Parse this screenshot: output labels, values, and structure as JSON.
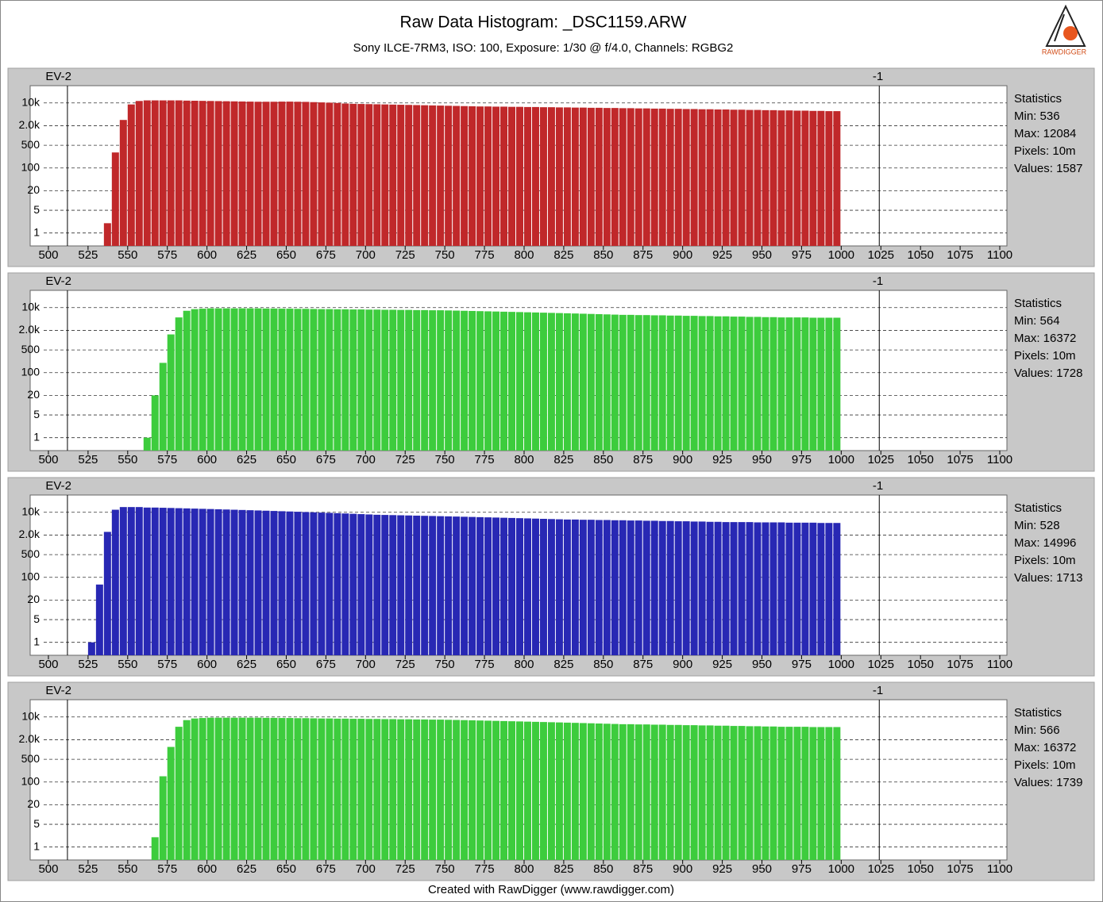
{
  "header": {
    "title": "Raw Data Histogram: _DSC1159.ARW",
    "subtitle": "Sony ILCE-7RM3, ISO: 100, Exposure: 1/30 @ f/4.0, Channels: RGBG2",
    "logo": "RAWDIGGER"
  },
  "footer": "Created with RawDigger (www.rawdigger.com)",
  "chart_data": [
    {
      "type": "histogram",
      "color": "#c0282a",
      "bins": [
        535,
        540,
        545,
        550,
        555,
        560,
        565,
        570,
        575,
        580,
        585,
        590,
        595,
        600,
        605,
        610,
        615,
        620,
        625,
        630,
        635,
        640,
        645,
        650,
        655,
        660,
        665,
        670,
        675,
        680,
        685,
        690,
        695,
        700,
        705,
        710,
        715,
        720,
        725,
        730,
        735,
        740,
        745,
        750,
        755,
        760,
        765,
        770,
        775,
        780,
        785,
        790,
        795,
        800,
        805,
        810,
        815,
        820,
        825,
        830,
        835,
        840,
        845,
        850,
        855,
        860,
        865,
        870,
        875,
        880,
        885,
        890,
        895,
        900,
        905,
        910,
        915,
        920,
        925,
        930,
        935,
        940,
        945,
        950,
        955,
        960,
        965,
        970,
        975,
        980,
        985,
        990,
        995,
        1000
      ],
      "values": [
        2,
        300,
        3000,
        9000,
        11500,
        12000,
        12000,
        12000,
        12000,
        12000,
        11800,
        11700,
        11600,
        11500,
        11400,
        11300,
        11200,
        11100,
        11000,
        10900,
        10900,
        10900,
        11000,
        11000,
        10900,
        10800,
        10600,
        10400,
        10200,
        10000,
        9600,
        9400,
        9300,
        9200,
        9100,
        9000,
        8900,
        8800,
        8700,
        8600,
        8500,
        8400,
        8300,
        8200,
        8100,
        8000,
        7900,
        7800,
        7800,
        7700,
        7700,
        7600,
        7600,
        7500,
        7500,
        7400,
        7400,
        7300,
        7300,
        7200,
        7200,
        7100,
        7100,
        7000,
        7000,
        6900,
        6900,
        6800,
        6800,
        6700,
        6700,
        6600,
        6600,
        6500,
        6500,
        6400,
        6400,
        6300,
        6300,
        6200,
        6200,
        6100,
        6100,
        6000,
        6000,
        5900,
        5900,
        5800,
        5800,
        5700,
        5700,
        5600,
        5600
      ],
      "xlim": [
        488.5,
        1104.5
      ],
      "xticks": [
        500,
        525,
        550,
        575,
        600,
        625,
        650,
        675,
        700,
        725,
        750,
        775,
        800,
        825,
        850,
        875,
        900,
        925,
        950,
        975,
        1000,
        1025,
        1050,
        1075,
        1100
      ],
      "ylim": [
        0.4,
        34000
      ],
      "log_y": true,
      "grid": true,
      "yticks": [
        1,
        5,
        20,
        100,
        500,
        {
          "value": 2000,
          "label": "2.0k"
        },
        {
          "value": 10000,
          "label": "10k"
        }
      ],
      "markers": [
        {
          "value": 512,
          "label": "EV-2"
        },
        {
          "value": 1024,
          "label": "-1"
        }
      ],
      "statistics": {
        "title": "Statistics",
        "lines": [
          "Min: 536",
          "Max: 12084",
          "Pixels: 10m",
          "Values: 1587"
        ]
      }
    },
    {
      "type": "histogram",
      "color": "#3dcc3d",
      "bins": [
        560,
        565,
        570,
        575,
        580,
        585,
        590,
        595,
        600,
        605,
        610,
        615,
        620,
        625,
        630,
        635,
        640,
        645,
        650,
        655,
        660,
        665,
        670,
        675,
        680,
        685,
        690,
        695,
        700,
        705,
        710,
        715,
        720,
        725,
        730,
        735,
        740,
        745,
        750,
        755,
        760,
        765,
        770,
        775,
        780,
        785,
        790,
        795,
        800,
        805,
        810,
        815,
        820,
        825,
        830,
        835,
        840,
        845,
        850,
        855,
        860,
        865,
        870,
        875,
        880,
        885,
        890,
        895,
        900,
        905,
        910,
        915,
        920,
        925,
        930,
        935,
        940,
        945,
        950,
        955,
        960,
        965,
        970,
        975,
        980,
        985,
        990,
        995,
        1000
      ],
      "values": [
        1,
        20,
        200,
        1500,
        5000,
        8000,
        9000,
        9300,
        9500,
        9500,
        9500,
        9500,
        9500,
        9500,
        9500,
        9400,
        9400,
        9300,
        9300,
        9200,
        9200,
        9100,
        9000,
        9000,
        8900,
        8900,
        8800,
        8800,
        8700,
        8700,
        8600,
        8600,
        8500,
        8500,
        8400,
        8400,
        8300,
        8300,
        8200,
        8100,
        8000,
        7900,
        7800,
        7700,
        7600,
        7500,
        7400,
        7300,
        7200,
        7100,
        7000,
        6900,
        6800,
        6700,
        6600,
        6500,
        6400,
        6300,
        6200,
        6100,
        6000,
        6000,
        5900,
        5900,
        5800,
        5800,
        5700,
        5700,
        5600,
        5600,
        5500,
        5500,
        5400,
        5400,
        5300,
        5300,
        5200,
        5200,
        5100,
        5100,
        5000,
        5000,
        5000,
        5000,
        4900,
        4900,
        4900,
        4900
      ],
      "xlim": [
        488.5,
        1104.5
      ],
      "xticks": [
        500,
        525,
        550,
        575,
        600,
        625,
        650,
        675,
        700,
        725,
        750,
        775,
        800,
        825,
        850,
        875,
        900,
        925,
        950,
        975,
        1000,
        1025,
        1050,
        1075,
        1100
      ],
      "ylim": [
        0.4,
        34000
      ],
      "log_y": true,
      "grid": true,
      "yticks": [
        1,
        5,
        20,
        100,
        500,
        {
          "value": 2000,
          "label": "2.0k"
        },
        {
          "value": 10000,
          "label": "10k"
        }
      ],
      "markers": [
        {
          "value": 512,
          "label": "EV-2"
        },
        {
          "value": 1024,
          "label": "-1"
        }
      ],
      "statistics": {
        "title": "Statistics",
        "lines": [
          "Min: 564",
          "Max: 16372",
          "Pixels: 10m",
          "Values: 1728"
        ]
      }
    },
    {
      "type": "histogram",
      "color": "#2828b4",
      "bins": [
        525,
        530,
        535,
        540,
        545,
        550,
        555,
        560,
        565,
        570,
        575,
        580,
        585,
        590,
        595,
        600,
        605,
        610,
        615,
        620,
        625,
        630,
        635,
        640,
        645,
        650,
        655,
        660,
        665,
        670,
        675,
        680,
        685,
        690,
        695,
        700,
        705,
        710,
        715,
        720,
        725,
        730,
        735,
        740,
        745,
        750,
        755,
        760,
        765,
        770,
        775,
        780,
        785,
        790,
        795,
        800,
        805,
        810,
        815,
        820,
        825,
        830,
        835,
        840,
        845,
        850,
        855,
        860,
        865,
        870,
        875,
        880,
        885,
        890,
        895,
        900,
        905,
        910,
        915,
        920,
        925,
        930,
        935,
        940,
        945,
        950,
        955,
        960,
        965,
        970,
        975,
        980,
        985,
        990,
        995,
        1000
      ],
      "values": [
        1,
        60,
        2500,
        12000,
        14500,
        14500,
        14500,
        14000,
        14000,
        13800,
        13600,
        13400,
        13200,
        13000,
        12800,
        12600,
        12400,
        12200,
        12000,
        11800,
        11600,
        11400,
        11200,
        11000,
        10800,
        10600,
        10400,
        10200,
        10000,
        9800,
        9600,
        9400,
        9200,
        9000,
        8800,
        8600,
        8400,
        8300,
        8200,
        8100,
        8000,
        7900,
        7800,
        7700,
        7600,
        7500,
        7400,
        7300,
        7200,
        7100,
        7000,
        6900,
        6800,
        6700,
        6600,
        6500,
        6400,
        6300,
        6200,
        6100,
        6000,
        6000,
        5900,
        5900,
        5800,
        5800,
        5700,
        5700,
        5600,
        5600,
        5500,
        5500,
        5400,
        5400,
        5300,
        5300,
        5200,
        5200,
        5100,
        5100,
        5000,
        5000,
        5000,
        5000,
        4900,
        4900,
        4900,
        4900,
        4800,
        4800,
        4800,
        4800,
        4700,
        4700,
        4700
      ],
      "xlim": [
        488.5,
        1104.5
      ],
      "xticks": [
        500,
        525,
        550,
        575,
        600,
        625,
        650,
        675,
        700,
        725,
        750,
        775,
        800,
        825,
        850,
        875,
        900,
        925,
        950,
        975,
        1000,
        1025,
        1050,
        1075,
        1100
      ],
      "ylim": [
        0.4,
        34000
      ],
      "log_y": true,
      "grid": true,
      "yticks": [
        1,
        5,
        20,
        100,
        500,
        {
          "value": 2000,
          "label": "2.0k"
        },
        {
          "value": 10000,
          "label": "10k"
        }
      ],
      "markers": [
        {
          "value": 512,
          "label": "EV-2"
        },
        {
          "value": 1024,
          "label": "-1"
        }
      ],
      "statistics": {
        "title": "Statistics",
        "lines": [
          "Min: 528",
          "Max: 14996",
          "Pixels: 10m",
          "Values: 1713"
        ]
      }
    },
    {
      "type": "histogram",
      "color": "#3dcc3d",
      "bins": [
        565,
        570,
        575,
        580,
        585,
        590,
        595,
        600,
        605,
        610,
        615,
        620,
        625,
        630,
        635,
        640,
        645,
        650,
        655,
        660,
        665,
        670,
        675,
        680,
        685,
        690,
        695,
        700,
        705,
        710,
        715,
        720,
        725,
        730,
        735,
        740,
        745,
        750,
        755,
        760,
        765,
        770,
        775,
        780,
        785,
        790,
        795,
        800,
        805,
        810,
        815,
        820,
        825,
        830,
        835,
        840,
        845,
        850,
        855,
        860,
        865,
        870,
        875,
        880,
        885,
        890,
        895,
        900,
        905,
        910,
        915,
        920,
        925,
        930,
        935,
        940,
        945,
        950,
        955,
        960,
        965,
        970,
        975,
        980,
        985,
        990,
        995,
        1000
      ],
      "values": [
        2,
        150,
        1200,
        5000,
        8000,
        9000,
        9300,
        9500,
        9500,
        9500,
        9500,
        9500,
        9500,
        9500,
        9400,
        9400,
        9300,
        9300,
        9200,
        9200,
        9100,
        9000,
        9000,
        8900,
        8900,
        8800,
        8800,
        8700,
        8700,
        8600,
        8600,
        8500,
        8500,
        8400,
        8400,
        8300,
        8300,
        8200,
        8100,
        8000,
        7900,
        7800,
        7700,
        7600,
        7500,
        7400,
        7300,
        7200,
        7100,
        7000,
        6900,
        6800,
        6700,
        6600,
        6500,
        6400,
        6300,
        6200,
        6100,
        6000,
        6000,
        5900,
        5900,
        5800,
        5800,
        5700,
        5700,
        5600,
        5600,
        5500,
        5500,
        5400,
        5400,
        5300,
        5300,
        5200,
        5200,
        5100,
        5100,
        5000,
        5000,
        5000,
        5000,
        4900,
        4900,
        4900,
        4900
      ],
      "xlim": [
        488.5,
        1104.5
      ],
      "xticks": [
        500,
        525,
        550,
        575,
        600,
        625,
        650,
        675,
        700,
        725,
        750,
        775,
        800,
        825,
        850,
        875,
        900,
        925,
        950,
        975,
        1000,
        1025,
        1050,
        1075,
        1100
      ],
      "ylim": [
        0.4,
        34000
      ],
      "log_y": true,
      "grid": true,
      "yticks": [
        1,
        5,
        20,
        100,
        500,
        {
          "value": 2000,
          "label": "2.0k"
        },
        {
          "value": 10000,
          "label": "10k"
        }
      ],
      "markers": [
        {
          "value": 512,
          "label": "EV-2"
        },
        {
          "value": 1024,
          "label": "-1"
        }
      ],
      "statistics": {
        "title": "Statistics",
        "lines": [
          "Min: 566",
          "Max: 16372",
          "Pixels: 10m",
          "Values: 1739"
        ]
      }
    }
  ]
}
